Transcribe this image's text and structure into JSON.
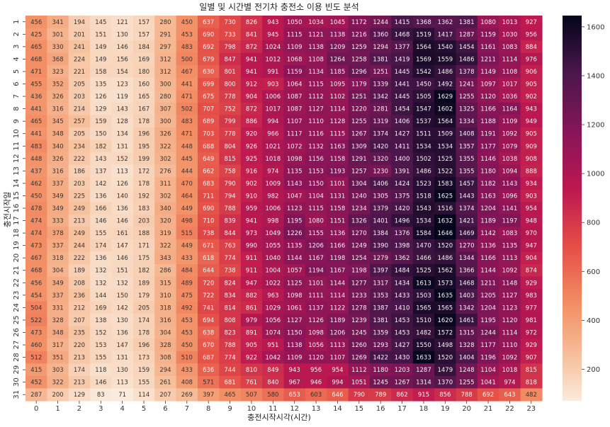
{
  "chart_data": {
    "type": "heatmap",
    "title": "일별 및 시간별 전기차 충전소 이용 빈도 분석",
    "xlabel": "충전시작시각(시간)",
    "ylabel": "충전시작일",
    "x_categories": [
      "0",
      "1",
      "2",
      "3",
      "4",
      "5",
      "6",
      "7",
      "8",
      "9",
      "10",
      "11",
      "12",
      "13",
      "14",
      "15",
      "16",
      "17",
      "18",
      "19",
      "20",
      "21",
      "22",
      "23"
    ],
    "y_categories": [
      "1",
      "2",
      "3",
      "4",
      "5",
      "6",
      "7",
      "8",
      "9",
      "10",
      "11",
      "12",
      "13",
      "14",
      "15",
      "16",
      "17",
      "18",
      "19",
      "20",
      "21",
      "22",
      "23",
      "24",
      "25",
      "26",
      "27",
      "28",
      "29",
      "30",
      "31"
    ],
    "values": [
      [
        456,
        341,
        194,
        145,
        121,
        157,
        280,
        450,
        637,
        730,
        826,
        943,
        1050,
        1034,
        1045,
        1172,
        1244,
        1415,
        1368,
        1362,
        1381,
        1080,
        1013,
        927
      ],
      [
        425,
        301,
        201,
        151,
        130,
        157,
        291,
        453,
        690,
        733,
        841,
        945,
        1115,
        1121,
        1138,
        1216,
        1360,
        1468,
        1519,
        1417,
        1287,
        1159,
        1030,
        956
      ],
      [
        465,
        330,
        241,
        149,
        146,
        184,
        297,
        483,
        692,
        798,
        872,
        1024,
        1109,
        1138,
        1209,
        1259,
        1294,
        1377,
        1564,
        1540,
        1454,
        1161,
        1083,
        884
      ],
      [
        468,
        368,
        224,
        149,
        156,
        169,
        312,
        500,
        679,
        847,
        941,
        1012,
        1068,
        1108,
        1264,
        1258,
        1381,
        1419,
        1569,
        1559,
        1486,
        1211,
        1114,
        976
      ],
      [
        471,
        323,
        221,
        158,
        154,
        180,
        312,
        467,
        630,
        801,
        941,
        991,
        1159,
        1134,
        1185,
        1296,
        1251,
        1445,
        1542,
        1486,
        1378,
        1149,
        1108,
        906
      ],
      [
        455,
        352,
        205,
        135,
        123,
        160,
        300,
        441,
        699,
        800,
        912,
        903,
        1064,
        1115,
        1095,
        1179,
        1339,
        1441,
        1450,
        1492,
        1241,
        1097,
        1017,
        905
      ],
      [
        436,
        326,
        203,
        126,
        119,
        165,
        280,
        471,
        675,
        778,
        904,
        1006,
        1087,
        1112,
        1102,
        1251,
        1342,
        1445,
        1505,
        1629,
        1255,
        1120,
        1036,
        902
      ],
      [
        441,
        316,
        214,
        129,
        143,
        167,
        307,
        502,
        707,
        752,
        872,
        1017,
        1087,
        1127,
        1114,
        1220,
        1281,
        1454,
        1547,
        1602,
        1325,
        1166,
        1164,
        943
      ],
      [
        465,
        345,
        257,
        159,
        128,
        178,
        300,
        483,
        689,
        799,
        886,
        994,
        1107,
        1110,
        1128,
        1255,
        1319,
        1406,
        1537,
        1564,
        1334,
        1188,
        1109,
        949
      ],
      [
        441,
        348,
        205,
        150,
        134,
        196,
        326,
        471,
        703,
        778,
        920,
        966,
        1117,
        1116,
        1115,
        1267,
        1374,
        1427,
        1511,
        1509,
        1408,
        1191,
        1092,
        905
      ],
      [
        483,
        340,
        234,
        182,
        131,
        195,
        322,
        448,
        688,
        804,
        926,
        1021,
        1072,
        1132,
        1163,
        1309,
        1420,
        1411,
        1534,
        1534,
        1357,
        1177,
        1079,
        909
      ],
      [
        448,
        326,
        222,
        143,
        152,
        199,
        302,
        445,
        649,
        815,
        925,
        1018,
        1098,
        1156,
        1158,
        1291,
        1320,
        1400,
        1502,
        1525,
        1355,
        1146,
        1038,
        908
      ],
      [
        437,
        316,
        186,
        137,
        113,
        172,
        276,
        444,
        662,
        758,
        916,
        974,
        1135,
        1153,
        1193,
        1257,
        1230,
        1391,
        1486,
        1522,
        1355,
        1180,
        1094,
        888
      ],
      [
        462,
        337,
        203,
        142,
        126,
        178,
        311,
        470,
        683,
        790,
        902,
        1009,
        1143,
        1150,
        1101,
        1304,
        1406,
        1424,
        1523,
        1583,
        1457,
        1182,
        1143,
        934
      ],
      [
        450,
        349,
        225,
        136,
        140,
        192,
        302,
        464,
        711,
        794,
        910,
        982,
        1047,
        1104,
        1131,
        1240,
        1305,
        1375,
        1518,
        1625,
        1443,
        1163,
        1096,
        903
      ],
      [
        478,
        349,
        249,
        166,
        136,
        183,
        340,
        449,
        690,
        788,
        959,
        1006,
        1123,
        1115,
        1158,
        1234,
        1379,
        1420,
        1543,
        1516,
        1374,
        1204,
        1141,
        954
      ],
      [
        474,
        333,
        213,
        146,
        146,
        203,
        320,
        498,
        710,
        839,
        941,
        998,
        1195,
        1080,
        1151,
        1326,
        1401,
        1496,
        1534,
        1632,
        1421,
        1189,
        1197,
        948
      ],
      [
        474,
        378,
        249,
        155,
        161,
        188,
        319,
        515,
        738,
        844,
        973,
        1049,
        1226,
        1155,
        1136,
        1270,
        1384,
        1376,
        1584,
        1646,
        1469,
        1142,
        1083,
        970
      ],
      [
        473,
        337,
        244,
        174,
        147,
        171,
        322,
        449,
        671,
        763,
        990,
        1055,
        1135,
        1206,
        1166,
        1249,
        1390,
        1398,
        1470,
        1520,
        1270,
        1136,
        1135,
        947
      ],
      [
        467,
        318,
        222,
        136,
        146,
        175,
        343,
        433,
        618,
        774,
        911,
        1040,
        1144,
        1167,
        1198,
        1254,
        1279,
        1362,
        1466,
        1486,
        1344,
        1166,
        1113,
        904
      ],
      [
        468,
        304,
        189,
        132,
        151,
        182,
        286,
        484,
        644,
        738,
        911,
        1004,
        1057,
        1194,
        1167,
        1198,
        1397,
        1484,
        1525,
        1562,
        1366,
        1144,
        1092,
        874
      ],
      [
        456,
        349,
        208,
        132,
        132,
        189,
        315,
        489,
        720,
        824,
        947,
        1022,
        1125,
        1101,
        1144,
        1277,
        1317,
        1434,
        1613,
        1573,
        1468,
        1211,
        1148,
        929
      ],
      [
        454,
        337,
        236,
        144,
        150,
        179,
        310,
        475,
        722,
        834,
        882,
        963,
        1098,
        1111,
        1114,
        1233,
        1353,
        1433,
        1503,
        1635,
        1403,
        1205,
        1127,
        983
      ],
      [
        504,
        331,
        212,
        169,
        142,
        205,
        318,
        492,
        741,
        814,
        861,
        1029,
        1061,
        1137,
        1122,
        1278,
        1387,
        1410,
        1565,
        1565,
        1342,
        1204,
        1123,
        977
      ],
      [
        522,
        328,
        207,
        138,
        130,
        174,
        316,
        453,
        694,
        808,
        979,
        1056,
        1127,
        1126,
        1189,
        1239,
        1381,
        1453,
        1510,
        1620,
        1461,
        1195,
        1120,
        981
      ],
      [
        473,
        348,
        235,
        152,
        136,
        178,
        304,
        453,
        638,
        823,
        891,
        1074,
        1150,
        1098,
        1206,
        1245,
        1359,
        1453,
        1482,
        1572,
        1315,
        1244,
        1114,
        972
      ],
      [
        460,
        317,
        220,
        153,
        147,
        196,
        328,
        450,
        670,
        788,
        905,
        951,
        1138,
        1056,
        1113,
        1260,
        1293,
        1427,
        1550,
        1498,
        1328,
        1177,
        1110,
        929
      ],
      [
        512,
        351,
        213,
        155,
        131,
        173,
        308,
        510,
        687,
        774,
        922,
        1042,
        1109,
        1120,
        1107,
        1269,
        1422,
        1430,
        1633,
        1520,
        1404,
        1196,
        1092,
        907
      ],
      [
        415,
        303,
        174,
        118,
        130,
        159,
        294,
        433,
        636,
        744,
        810,
        849,
        943,
        956,
        954,
        1112,
        1180,
        1203,
        1287,
        1479,
        1248,
        1104,
        1018,
        815
      ],
      [
        452,
        322,
        213,
        146,
        113,
        155,
        261,
        408,
        571,
        681,
        761,
        840,
        967,
        946,
        994,
        1051,
        1245,
        1267,
        1314,
        1370,
        1255,
        1041,
        974,
        818
      ],
      [
        287,
        200,
        129,
        83,
        71,
        114,
        207,
        269,
        397,
        465,
        507,
        580,
        653,
        603,
        646,
        790,
        789,
        862,
        915,
        856,
        788,
        692,
        643,
        482
      ]
    ],
    "colorbar": {
      "min": 71,
      "max": 1646,
      "ticks": [
        200,
        400,
        600,
        800,
        1000,
        1200,
        1400,
        1600
      ],
      "colormap": "rocket_r"
    },
    "grid": false,
    "annotated": true
  }
}
